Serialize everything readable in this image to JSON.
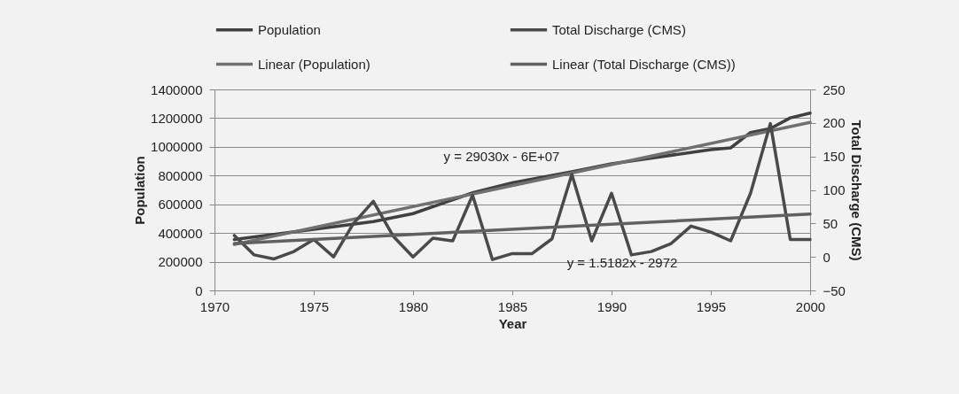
{
  "chart_data": {
    "type": "line",
    "xlabel": "Year",
    "ylabel": "Population",
    "y2label": "Total Discharge (CMS)",
    "series": [
      {
        "name": "Population",
        "color": "#404040",
        "x": [
          1971,
          1975,
          1978,
          1980,
          1983,
          1985,
          1988,
          1990,
          1995,
          1996,
          1997,
          1998,
          1999,
          2000
        ],
        "values": [
          355000,
          426000,
          479000,
          535000,
          680000,
          750000,
          827000,
          882000,
          981000,
          993000,
          1100000,
          1127000,
          1202000,
          1235000
        ]
      },
      {
        "name": "Total Discharge (CMS)",
        "color": "#4a4a4a",
        "axis": "y2",
        "x": [
          1971,
          1972,
          1973,
          1974,
          1975,
          1976,
          1977,
          1978,
          1979,
          1980,
          1981,
          1982,
          1983,
          1984,
          1985,
          1986,
          1987,
          1988,
          1989,
          1990,
          1991,
          1992,
          1993,
          1994,
          1995,
          1996,
          1997,
          1998,
          1999,
          2000
        ],
        "values": [
          32,
          3,
          -3,
          8,
          26,
          0,
          50,
          83,
          31,
          0,
          28,
          24,
          92,
          -4,
          5,
          5,
          27,
          123,
          24,
          95,
          3,
          8,
          20,
          46,
          37,
          24,
          95,
          199,
          26,
          26
        ]
      },
      {
        "name": "Linear (Population)",
        "color": "#707070",
        "x": [
          1971,
          2000
        ],
        "values": [
          320000,
          1170000
        ]
      },
      {
        "name": "Linear (Total Discharge (CMS))",
        "color": "#606060",
        "axis": "y2",
        "x": [
          1971,
          2000
        ],
        "values": [
          20,
          64
        ]
      }
    ],
    "xlim": [
      1970,
      2000
    ],
    "xticks": [
      1970,
      1975,
      1980,
      1985,
      1990,
      1995,
      2000
    ],
    "ylim": [
      0,
      1400000
    ],
    "yticks": [
      0,
      200000,
      400000,
      600000,
      800000,
      1000000,
      1200000,
      1400000
    ],
    "y2lim": [
      -50,
      250
    ],
    "y2ticks": [
      -50,
      0,
      50,
      100,
      150,
      200,
      250
    ],
    "annotations": [
      "y = 29030x - 6E+07",
      "y = 1.5182x - 2972"
    ],
    "grid": "y",
    "legend": "top"
  }
}
